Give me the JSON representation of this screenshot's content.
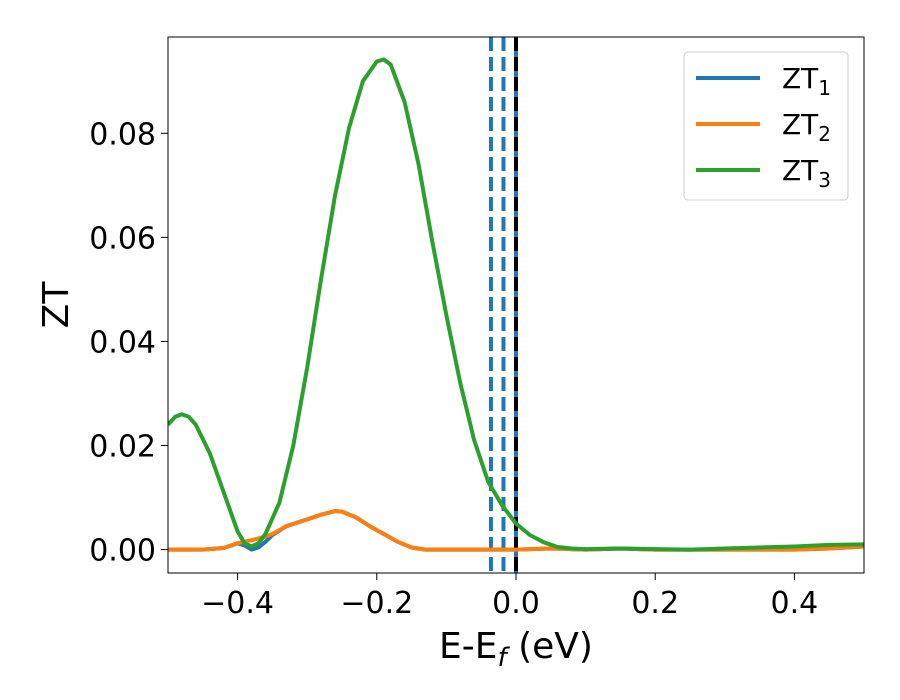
{
  "chart_data": {
    "type": "line",
    "title": "",
    "xlabel": {
      "main": "E-E",
      "sub": "f",
      "unit": " (eV)"
    },
    "ylabel": "ZT",
    "xlim": [
      -0.5,
      0.5
    ],
    "ylim": [
      -0.0045,
      0.0985
    ],
    "x_ticks": [
      -0.4,
      -0.2,
      0.0,
      0.2,
      0.4
    ],
    "x_tick_labels": [
      "−0.4",
      "−0.2",
      "0.0",
      "0.2",
      "0.4"
    ],
    "y_ticks": [
      0.0,
      0.02,
      0.04,
      0.06,
      0.08
    ],
    "y_tick_labels": [
      "0.00",
      "0.02",
      "0.04",
      "0.06",
      "0.08"
    ],
    "grid": false,
    "legend_position": "top-right",
    "vertical_lines": [
      {
        "x": -0.036,
        "color": "#1f77b4",
        "style": "dashed"
      },
      {
        "x": -0.018,
        "color": "#1f77b4",
        "style": "dashed"
      },
      {
        "x": 0.0,
        "color": "#1f77b4",
        "style": "solid"
      },
      {
        "x": 0.0,
        "color": "#000000",
        "style": "dashed"
      }
    ],
    "series": [
      {
        "name": "ZT",
        "sub": "1",
        "color": "#1f77b4",
        "points": [
          [
            -0.5,
            0.0
          ],
          [
            -0.45,
            0.0
          ],
          [
            -0.42,
            0.0003
          ],
          [
            -0.4,
            0.0012
          ],
          [
            -0.39,
            0.0008
          ],
          [
            -0.38,
            0.0
          ],
          [
            -0.37,
            0.0004
          ],
          [
            -0.36,
            0.0015
          ],
          [
            -0.35,
            0.0028
          ],
          [
            -0.33,
            0.0045
          ],
          [
            -0.3,
            0.0058
          ],
          [
            -0.28,
            0.0067
          ],
          [
            -0.26,
            0.0074
          ],
          [
            -0.25,
            0.0073
          ],
          [
            -0.23,
            0.0062
          ],
          [
            -0.21,
            0.0045
          ],
          [
            -0.19,
            0.003
          ],
          [
            -0.17,
            0.0015
          ],
          [
            -0.15,
            0.0004
          ],
          [
            -0.13,
            0.0
          ],
          [
            -0.1,
            0.0
          ],
          [
            0.0,
            0.0
          ],
          [
            0.05,
            0.0002
          ],
          [
            0.1,
            0.0
          ],
          [
            0.15,
            0.0002
          ],
          [
            0.2,
            0.0
          ],
          [
            0.3,
            0.0
          ],
          [
            0.4,
            0.0
          ],
          [
            0.45,
            0.0002
          ],
          [
            0.5,
            0.0006
          ]
        ]
      },
      {
        "name": "ZT",
        "sub": "2",
        "color": "#ff7f0e",
        "points": [
          [
            -0.5,
            0.0
          ],
          [
            -0.45,
            0.0
          ],
          [
            -0.42,
            0.0003
          ],
          [
            -0.4,
            0.0012
          ],
          [
            -0.38,
            0.0018
          ],
          [
            -0.36,
            0.0025
          ],
          [
            -0.35,
            0.003
          ],
          [
            -0.33,
            0.0045
          ],
          [
            -0.3,
            0.0058
          ],
          [
            -0.28,
            0.0067
          ],
          [
            -0.26,
            0.0074
          ],
          [
            -0.25,
            0.0073
          ],
          [
            -0.23,
            0.0062
          ],
          [
            -0.21,
            0.0045
          ],
          [
            -0.19,
            0.003
          ],
          [
            -0.17,
            0.0015
          ],
          [
            -0.15,
            0.0004
          ],
          [
            -0.13,
            0.0
          ],
          [
            -0.1,
            0.0
          ],
          [
            0.0,
            0.0
          ],
          [
            0.05,
            0.0002
          ],
          [
            0.1,
            0.0
          ],
          [
            0.15,
            0.0002
          ],
          [
            0.2,
            0.0
          ],
          [
            0.3,
            0.0
          ],
          [
            0.4,
            0.0
          ],
          [
            0.45,
            0.0002
          ],
          [
            0.5,
            0.0006
          ]
        ]
      },
      {
        "name": "ZT",
        "sub": "3",
        "color": "#2ca02c",
        "points": [
          [
            -0.5,
            0.024
          ],
          [
            -0.49,
            0.0255
          ],
          [
            -0.48,
            0.026
          ],
          [
            -0.47,
            0.0255
          ],
          [
            -0.46,
            0.024
          ],
          [
            -0.44,
            0.0185
          ],
          [
            -0.42,
            0.011
          ],
          [
            -0.4,
            0.0035
          ],
          [
            -0.39,
            0.0012
          ],
          [
            -0.38,
            0.0006
          ],
          [
            -0.37,
            0.0012
          ],
          [
            -0.36,
            0.003
          ],
          [
            -0.34,
            0.009
          ],
          [
            -0.32,
            0.02
          ],
          [
            -0.3,
            0.035
          ],
          [
            -0.28,
            0.052
          ],
          [
            -0.26,
            0.068
          ],
          [
            -0.24,
            0.081
          ],
          [
            -0.22,
            0.09
          ],
          [
            -0.2,
            0.0938
          ],
          [
            -0.19,
            0.0942
          ],
          [
            -0.18,
            0.0932
          ],
          [
            -0.16,
            0.086
          ],
          [
            -0.14,
            0.074
          ],
          [
            -0.12,
            0.059
          ],
          [
            -0.1,
            0.045
          ],
          [
            -0.08,
            0.032
          ],
          [
            -0.06,
            0.021
          ],
          [
            -0.04,
            0.013
          ],
          [
            -0.02,
            0.0085
          ],
          [
            0.0,
            0.005
          ],
          [
            0.02,
            0.0028
          ],
          [
            0.04,
            0.0014
          ],
          [
            0.06,
            0.0005
          ],
          [
            0.08,
            0.0002
          ],
          [
            0.1,
            0.0001
          ],
          [
            0.15,
            0.0002
          ],
          [
            0.2,
            0.0001
          ],
          [
            0.25,
            0.0
          ],
          [
            0.3,
            0.0002
          ],
          [
            0.35,
            0.0004
          ],
          [
            0.4,
            0.0006
          ],
          [
            0.45,
            0.0009
          ],
          [
            0.5,
            0.001
          ]
        ]
      }
    ]
  }
}
